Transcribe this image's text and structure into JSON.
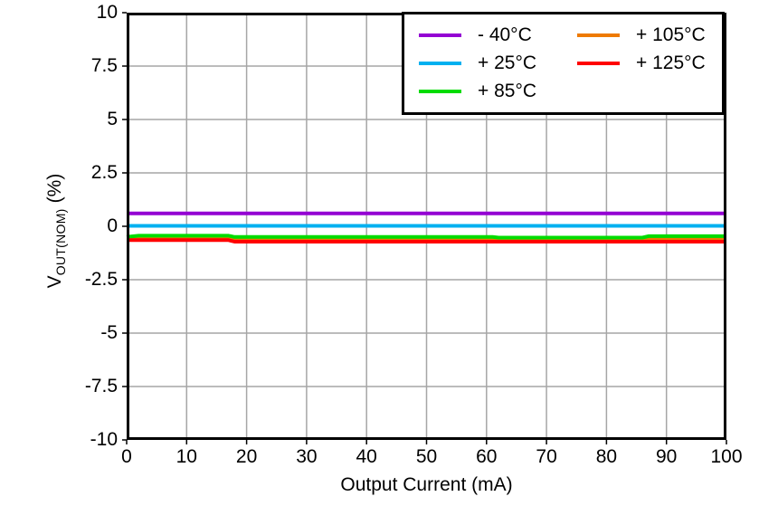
{
  "chart_data": {
    "type": "line",
    "title": "",
    "xlabel": "Output Current (mA)",
    "ylabel": {
      "main": "V",
      "sub": "OUT(NOM)",
      "unit": "(%)"
    },
    "xlim": [
      0,
      100
    ],
    "ylim": [
      -10,
      10
    ],
    "xticks": [
      0,
      10,
      20,
      30,
      40,
      50,
      60,
      70,
      80,
      90,
      100
    ],
    "yticks": [
      10,
      7.5,
      5,
      2.5,
      0,
      -2.5,
      -5,
      -7.5,
      -10
    ],
    "grid": true,
    "grid_color": "#A6A6A6",
    "axis_color": "#000000",
    "background_color": "#FFFFFF",
    "legend": {
      "position": "top-right",
      "columns": 2,
      "rows": 3,
      "order": "column-major"
    },
    "draw_order": [
      0,
      1,
      3,
      2,
      4
    ],
    "line_width": 4,
    "series": [
      {
        "name": "- 40°C",
        "color": "#9400D3",
        "points": [
          [
            0,
            0.6
          ],
          [
            100,
            0.6
          ]
        ]
      },
      {
        "name": "+ 25°C",
        "color": "#00B0F0",
        "points": [
          [
            0,
            0.02
          ],
          [
            100,
            0.02
          ]
        ]
      },
      {
        "name": "+ 85°C",
        "color": "#00DC00",
        "points": [
          [
            0,
            -0.5
          ],
          [
            2,
            -0.44
          ],
          [
            17,
            -0.44
          ],
          [
            18,
            -0.5
          ],
          [
            61,
            -0.5
          ],
          [
            62,
            -0.53
          ],
          [
            86,
            -0.53
          ],
          [
            87,
            -0.46
          ],
          [
            100,
            -0.46
          ]
        ]
      },
      {
        "name": "+ 105°C",
        "color": "#EE7A00",
        "points": [
          [
            0,
            -0.55
          ],
          [
            100,
            -0.55
          ]
        ]
      },
      {
        "name": "+ 125°C",
        "color": "#FF0000",
        "points": [
          [
            0,
            -0.65
          ],
          [
            17,
            -0.65
          ],
          [
            18,
            -0.72
          ],
          [
            100,
            -0.72
          ]
        ]
      }
    ]
  }
}
